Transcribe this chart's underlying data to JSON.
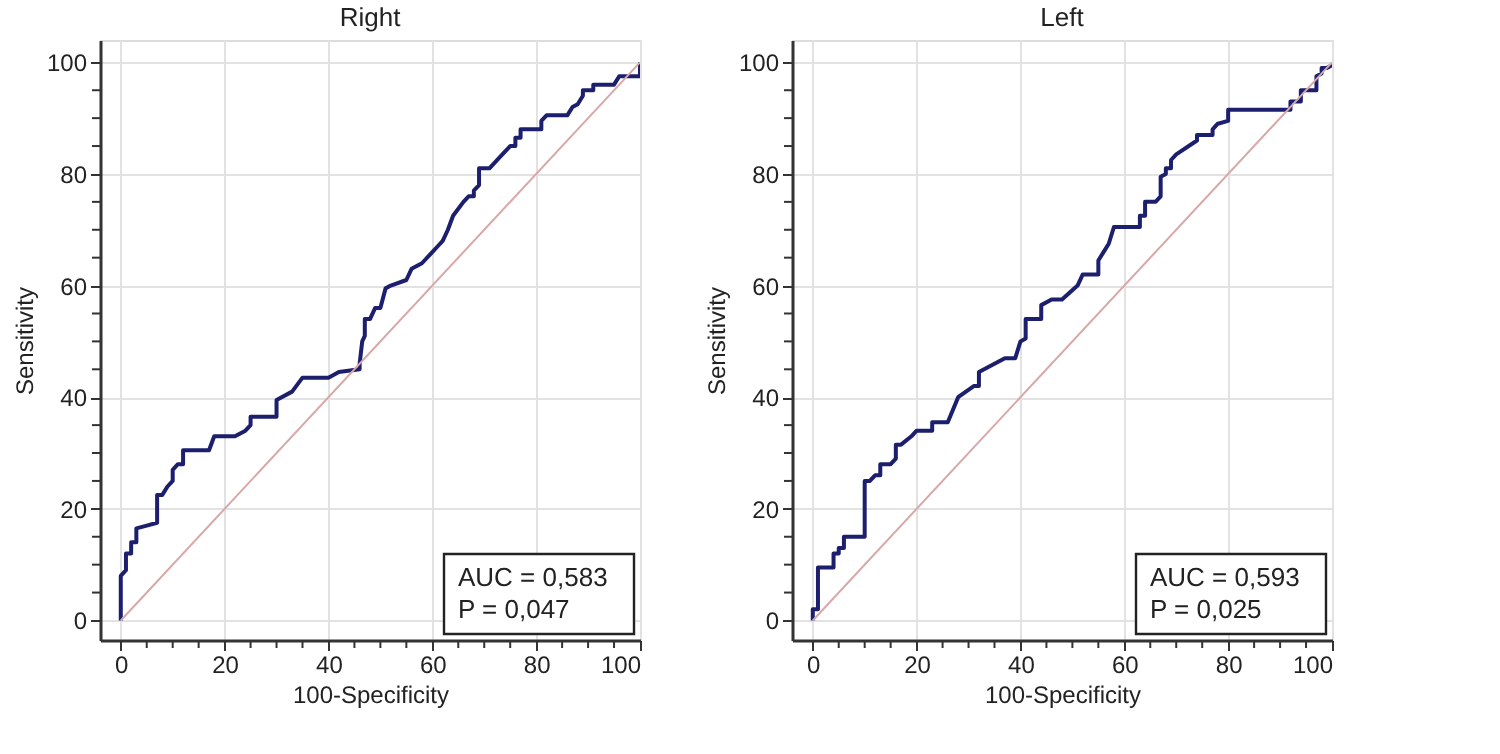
{
  "chart_data": [
    {
      "type": "line",
      "title": "Right",
      "xlabel": "100-Specificity",
      "ylabel": "Sensitivity",
      "xlim": [
        -4,
        100
      ],
      "ylim": [
        -3.5,
        104
      ],
      "grid": true,
      "marker": "none",
      "line_style": "solid",
      "xticks": [
        0,
        {
          "value": 5,
          "label": null
        },
        {
          "value": 10,
          "label": null
        },
        {
          "value": 15,
          "label": null
        },
        20,
        {
          "value": 25,
          "label": null
        },
        {
          "value": 30,
          "label": null
        },
        {
          "value": 35,
          "label": null
        },
        40,
        {
          "value": 45,
          "label": null
        },
        {
          "value": 50,
          "label": null
        },
        {
          "value": 55,
          "label": null
        },
        60,
        {
          "value": 65,
          "label": null
        },
        {
          "value": 70,
          "label": null
        },
        {
          "value": 75,
          "label": null
        },
        80,
        {
          "value": 85,
          "label": null
        },
        {
          "value": 90,
          "label": null
        },
        {
          "value": 95,
          "label": null
        },
        100
      ],
      "yticks": [
        0,
        {
          "value": 5,
          "label": null
        },
        {
          "value": 10,
          "label": null
        },
        {
          "value": 15,
          "label": null
        },
        20,
        {
          "value": 25,
          "label": null
        },
        {
          "value": 30,
          "label": null
        },
        {
          "value": 35,
          "label": null
        },
        40,
        {
          "value": 45,
          "label": null
        },
        {
          "value": 50,
          "label": null
        },
        {
          "value": 55,
          "label": null
        },
        60,
        {
          "value": 65,
          "label": null
        },
        {
          "value": 70,
          "label": null
        },
        {
          "value": 75,
          "label": null
        },
        80,
        {
          "value": 85,
          "label": null
        },
        {
          "value": 90,
          "label": null
        },
        {
          "value": 95,
          "label": null
        },
        100
      ],
      "annotations": [
        "AUC = 0,583",
        "P = 0,047"
      ],
      "series": [
        {
          "color": "#1c1f6e",
          "x": [
            0,
            0,
            1,
            1,
            2,
            2,
            3,
            3,
            5,
            7,
            7,
            8,
            9,
            10,
            10,
            11,
            12,
            12,
            17,
            18,
            22,
            24,
            25,
            25,
            30,
            30,
            33,
            35,
            40,
            42,
            46,
            46,
            46.5,
            47,
            47,
            48,
            49,
            50,
            51,
            52,
            55,
            56,
            58,
            60,
            61,
            62,
            63,
            64,
            66,
            67,
            68,
            68,
            69,
            69,
            71,
            73,
            75,
            76,
            76,
            77,
            77,
            81,
            81,
            82,
            86,
            87,
            88,
            89,
            89,
            91,
            91,
            95,
            96,
            100,
            100
          ],
          "values": [
            0,
            8,
            9,
            12,
            12,
            14,
            14,
            16.5,
            17,
            17.5,
            22.5,
            22.5,
            24,
            25,
            27,
            28,
            28,
            30.5,
            30.5,
            33,
            33,
            34,
            35,
            36.5,
            36.5,
            39.5,
            41,
            43.5,
            43.5,
            44.5,
            45,
            46,
            50,
            51,
            54,
            54,
            56,
            56,
            59.5,
            60,
            61,
            63,
            64,
            66,
            67,
            68,
            70,
            72.5,
            75,
            76,
            76,
            77,
            78,
            81,
            81,
            83,
            85,
            85,
            86.5,
            86.5,
            88,
            88,
            89.5,
            90.5,
            90.5,
            92,
            92.5,
            94,
            95,
            95,
            96,
            96,
            97.5,
            97.5,
            100
          ]
        },
        {
          "color": "#d8a8a8",
          "x": [
            0,
            100
          ],
          "values": [
            0,
            100
          ]
        }
      ]
    },
    {
      "type": "line",
      "title": "Left",
      "xlabel": "100-Specificity",
      "ylabel": "Sensitivity",
      "xlim": [
        -4,
        100
      ],
      "ylim": [
        -3.5,
        104
      ],
      "grid": true,
      "marker": "none",
      "line_style": "solid",
      "xticks": [
        0,
        {
          "value": 5,
          "label": null
        },
        {
          "value": 10,
          "label": null
        },
        {
          "value": 15,
          "label": null
        },
        20,
        {
          "value": 25,
          "label": null
        },
        {
          "value": 30,
          "label": null
        },
        {
          "value": 35,
          "label": null
        },
        40,
        {
          "value": 45,
          "label": null
        },
        {
          "value": 50,
          "label": null
        },
        {
          "value": 55,
          "label": null
        },
        60,
        {
          "value": 65,
          "label": null
        },
        {
          "value": 70,
          "label": null
        },
        {
          "value": 75,
          "label": null
        },
        80,
        {
          "value": 85,
          "label": null
        },
        {
          "value": 90,
          "label": null
        },
        {
          "value": 95,
          "label": null
        },
        100
      ],
      "yticks": [
        0,
        {
          "value": 5,
          "label": null
        },
        {
          "value": 10,
          "label": null
        },
        {
          "value": 15,
          "label": null
        },
        20,
        {
          "value": 25,
          "label": null
        },
        {
          "value": 30,
          "label": null
        },
        {
          "value": 35,
          "label": null
        },
        40,
        {
          "value": 45,
          "label": null
        },
        {
          "value": 50,
          "label": null
        },
        {
          "value": 55,
          "label": null
        },
        60,
        {
          "value": 65,
          "label": null
        },
        {
          "value": 70,
          "label": null
        },
        {
          "value": 75,
          "label": null
        },
        80,
        {
          "value": 85,
          "label": null
        },
        {
          "value": 90,
          "label": null
        },
        {
          "value": 95,
          "label": null
        },
        100
      ],
      "annotations": [
        "AUC = 0,593",
        "P = 0,025"
      ],
      "series": [
        {
          "color": "#1c1f6e",
          "x": [
            0,
            0,
            1,
            1,
            4,
            4,
            5,
            5,
            6,
            6,
            10,
            10,
            11,
            12,
            13,
            13,
            15,
            16,
            16,
            17,
            19,
            20,
            23,
            23,
            26,
            28,
            31,
            32,
            32,
            37,
            39,
            40,
            41,
            41,
            44,
            44,
            46,
            48,
            51,
            52,
            55,
            55,
            56,
            57,
            58,
            63,
            63,
            64,
            64,
            66,
            67,
            67,
            68,
            68,
            69,
            69,
            70,
            74,
            74,
            77,
            77,
            78,
            80,
            80,
            92,
            92,
            94,
            94,
            97,
            97,
            98,
            98,
            99,
            100
          ],
          "values": [
            0,
            2,
            2,
            9.5,
            9.5,
            12,
            12,
            13,
            13,
            15,
            15,
            25,
            25,
            26,
            26,
            28,
            28,
            29,
            31.5,
            31.5,
            33,
            34,
            34,
            35.5,
            35.5,
            40,
            42,
            42,
            44.5,
            47,
            47,
            50,
            50.5,
            54,
            54,
            56.5,
            57.5,
            57.5,
            60,
            62,
            62,
            64.5,
            66,
            67.5,
            70.5,
            70.5,
            72.5,
            72.5,
            75,
            75,
            76,
            79.5,
            80,
            81,
            81,
            82.5,
            83.5,
            86,
            87,
            87,
            88,
            89,
            89.5,
            91.5,
            91.5,
            93,
            93,
            95,
            95,
            97.5,
            98,
            99,
            99,
            99.5
          ]
        },
        {
          "color": "#d8a8a8",
          "x": [
            0,
            100
          ],
          "values": [
            0,
            100
          ]
        }
      ]
    }
  ]
}
